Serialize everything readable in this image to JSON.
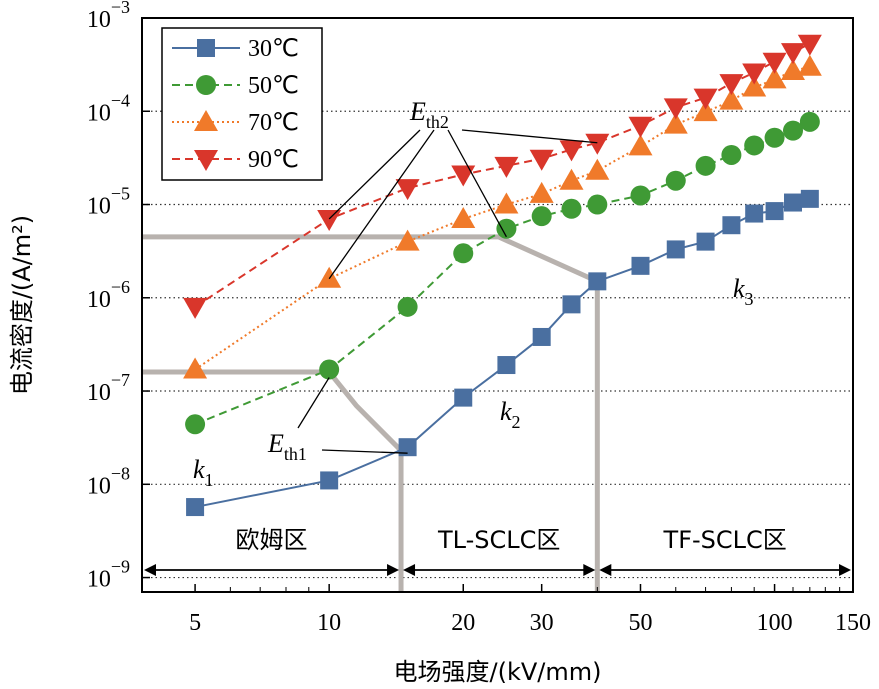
{
  "chart_data": {
    "type": "scatter",
    "x_scale": "log",
    "y_scale": "log",
    "xlabel": "电场强度/(kV/mm)",
    "ylabel": "电流密度/(A/m²)",
    "xlim": [
      3.8,
      150
    ],
    "ylim": [
      7e-10,
      0.001
    ],
    "x_ticks": [
      5,
      10,
      20,
      30,
      50,
      100,
      150
    ],
    "x_tick_labels": [
      "5",
      "10",
      "20",
      "30",
      "50",
      "100",
      "150"
    ],
    "y_ticks": [
      1e-09,
      1e-08,
      1e-07,
      1e-06,
      1e-05,
      0.0001,
      0.001
    ],
    "y_tick_labels": [
      {
        "base": "10",
        "exp": "−9"
      },
      {
        "base": "10",
        "exp": "−8"
      },
      {
        "base": "10",
        "exp": "−7"
      },
      {
        "base": "10",
        "exp": "−6"
      },
      {
        "base": "10",
        "exp": "−5"
      },
      {
        "base": "10",
        "exp": "−4"
      },
      {
        "base": "10",
        "exp": "−3"
      }
    ],
    "grid": "horizontal dotted",
    "legend_position": "top-left",
    "series": [
      {
        "name": "30℃",
        "color": "#4a6fa0",
        "marker": "square",
        "line_style": "solid",
        "x": [
          5,
          10,
          15,
          20,
          25,
          30,
          35,
          40,
          50,
          60,
          70,
          80,
          90,
          100,
          110,
          120
        ],
        "y": [
          5.7e-09,
          1.1e-08,
          2.5e-08,
          8.5e-08,
          1.9e-07,
          3.8e-07,
          8.5e-07,
          1.5e-06,
          2.2e-06,
          3.3e-06,
          4e-06,
          6e-06,
          8e-06,
          8.5e-06,
          1.05e-05,
          1.15e-05
        ]
      },
      {
        "name": "50℃",
        "color": "#3f9a35",
        "marker": "circle",
        "line_style": "dashed",
        "x": [
          5,
          10,
          15,
          20,
          25,
          30,
          35,
          40,
          50,
          60,
          70,
          80,
          90,
          100,
          110,
          120
        ],
        "y": [
          4.4e-08,
          1.7e-07,
          8e-07,
          3e-06,
          5.5e-06,
          7.5e-06,
          9e-06,
          1e-05,
          1.25e-05,
          1.8e-05,
          2.6e-05,
          3.4e-05,
          4.3e-05,
          5.2e-05,
          6.2e-05,
          7.7e-05
        ]
      },
      {
        "name": "70℃",
        "color": "#f07a2a",
        "marker": "triangle-up",
        "line_style": "dotted",
        "x": [
          5,
          10,
          15,
          20,
          25,
          30,
          35,
          40,
          50,
          60,
          70,
          80,
          90,
          100,
          110,
          120
        ],
        "y": [
          1.7e-07,
          1.6e-06,
          4e-06,
          7e-06,
          1e-05,
          1.3e-05,
          1.8e-05,
          2.3e-05,
          4.2e-05,
          7.2e-05,
          9.8e-05,
          0.00013,
          0.00018,
          0.00022,
          0.00027,
          0.0003
        ]
      },
      {
        "name": "90℃",
        "color": "#d9362b",
        "marker": "triangle-down",
        "line_style": "dashed",
        "x": [
          5,
          10,
          15,
          20,
          25,
          30,
          35,
          40,
          50,
          60,
          70,
          80,
          90,
          100,
          110,
          120
        ],
        "y": [
          8e-07,
          7e-06,
          1.5e-05,
          2.1e-05,
          2.6e-05,
          3.1e-05,
          3.9e-05,
          4.6e-05,
          7e-05,
          0.00011,
          0.00014,
          0.0002,
          0.00026,
          0.00034,
          0.00043,
          0.00053
        ]
      }
    ],
    "annotations": {
      "eth1": {
        "base": "E",
        "sub": "th1"
      },
      "eth2": {
        "base": "E",
        "sub": "th2"
      },
      "k1": {
        "base": "k",
        "sub": "1"
      },
      "k2": {
        "base": "k",
        "sub": "2"
      },
      "k3": {
        "base": "k",
        "sub": "3"
      }
    },
    "regions": [
      {
        "label": "欧姆区",
        "x_range": [
          3.8,
          14.5
        ]
      },
      {
        "label": "TL-SCLC区",
        "x_range": [
          14.5,
          40
        ]
      },
      {
        "label": "TF-SCLC区",
        "x_range": [
          40,
          150
        ]
      }
    ],
    "threshold_guides": {
      "eth1_level": 1.6e-07,
      "eth2_level": 4.5e-06,
      "ohmic_boundary_x": 14.5,
      "tl_boundary_x": 40
    }
  }
}
